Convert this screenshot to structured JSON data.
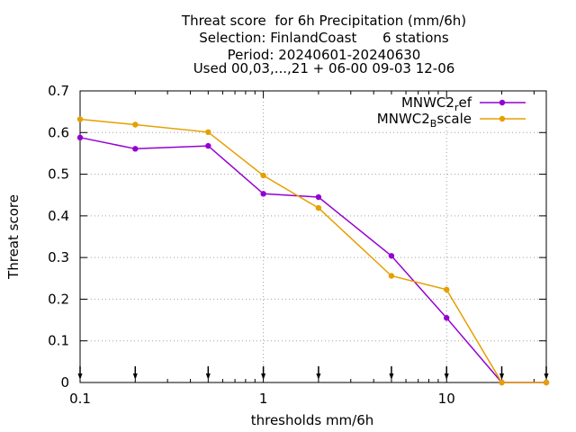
{
  "chart_data": {
    "type": "line",
    "title_lines": [
      "Threat score  for 6h Precipitation (mm/6h)",
      "Selection: FinlandCoast      6 stations",
      "Period: 20240601-20240630",
      "Used 00,03,...,21 + 06-00 09-03 12-06"
    ],
    "xlabel": "thresholds mm/6h",
    "ylabel": "Threat score",
    "x_scale": "log",
    "xlim": [
      0.1,
      35
    ],
    "ylim": [
      0,
      0.7
    ],
    "x_ticks": [
      {
        "value": 0.1,
        "label": "0.1"
      },
      {
        "value": 1,
        "label": "1"
      },
      {
        "value": 10,
        "label": "10"
      }
    ],
    "y_ticks": [
      {
        "value": 0,
        "label": "0"
      },
      {
        "value": 0.1,
        "label": "0.1"
      },
      {
        "value": 0.2,
        "label": "0.2"
      },
      {
        "value": 0.3,
        "label": "0.3"
      },
      {
        "value": 0.4,
        "label": "0.4"
      },
      {
        "value": 0.5,
        "label": "0.5"
      },
      {
        "value": 0.6,
        "label": "0.6"
      },
      {
        "value": 0.7,
        "label": "0.7"
      }
    ],
    "grid": true,
    "legend_position": "top-right",
    "threshold_markers": [
      0.1,
      0.2,
      0.5,
      1,
      2,
      5,
      10,
      20,
      35
    ],
    "x": [
      0.1,
      0.2,
      0.5,
      1,
      2,
      5,
      10,
      20,
      35
    ],
    "series": [
      {
        "name": "MNWC2_ref",
        "legend_base": "MNWC2",
        "legend_sub": "r",
        "legend_rest": "ef",
        "color": "#9400d3",
        "values": [
          0.588,
          0.561,
          0.568,
          0.453,
          0.445,
          0.304,
          0.155,
          0.0,
          0.0
        ]
      },
      {
        "name": "MNWC2_Bscale",
        "legend_base": "MNWC2",
        "legend_sub": "B",
        "legend_rest": "scale",
        "color": "#e69f00",
        "values": [
          0.632,
          0.619,
          0.601,
          0.497,
          0.419,
          0.256,
          0.223,
          0.0,
          0.0
        ]
      }
    ]
  }
}
